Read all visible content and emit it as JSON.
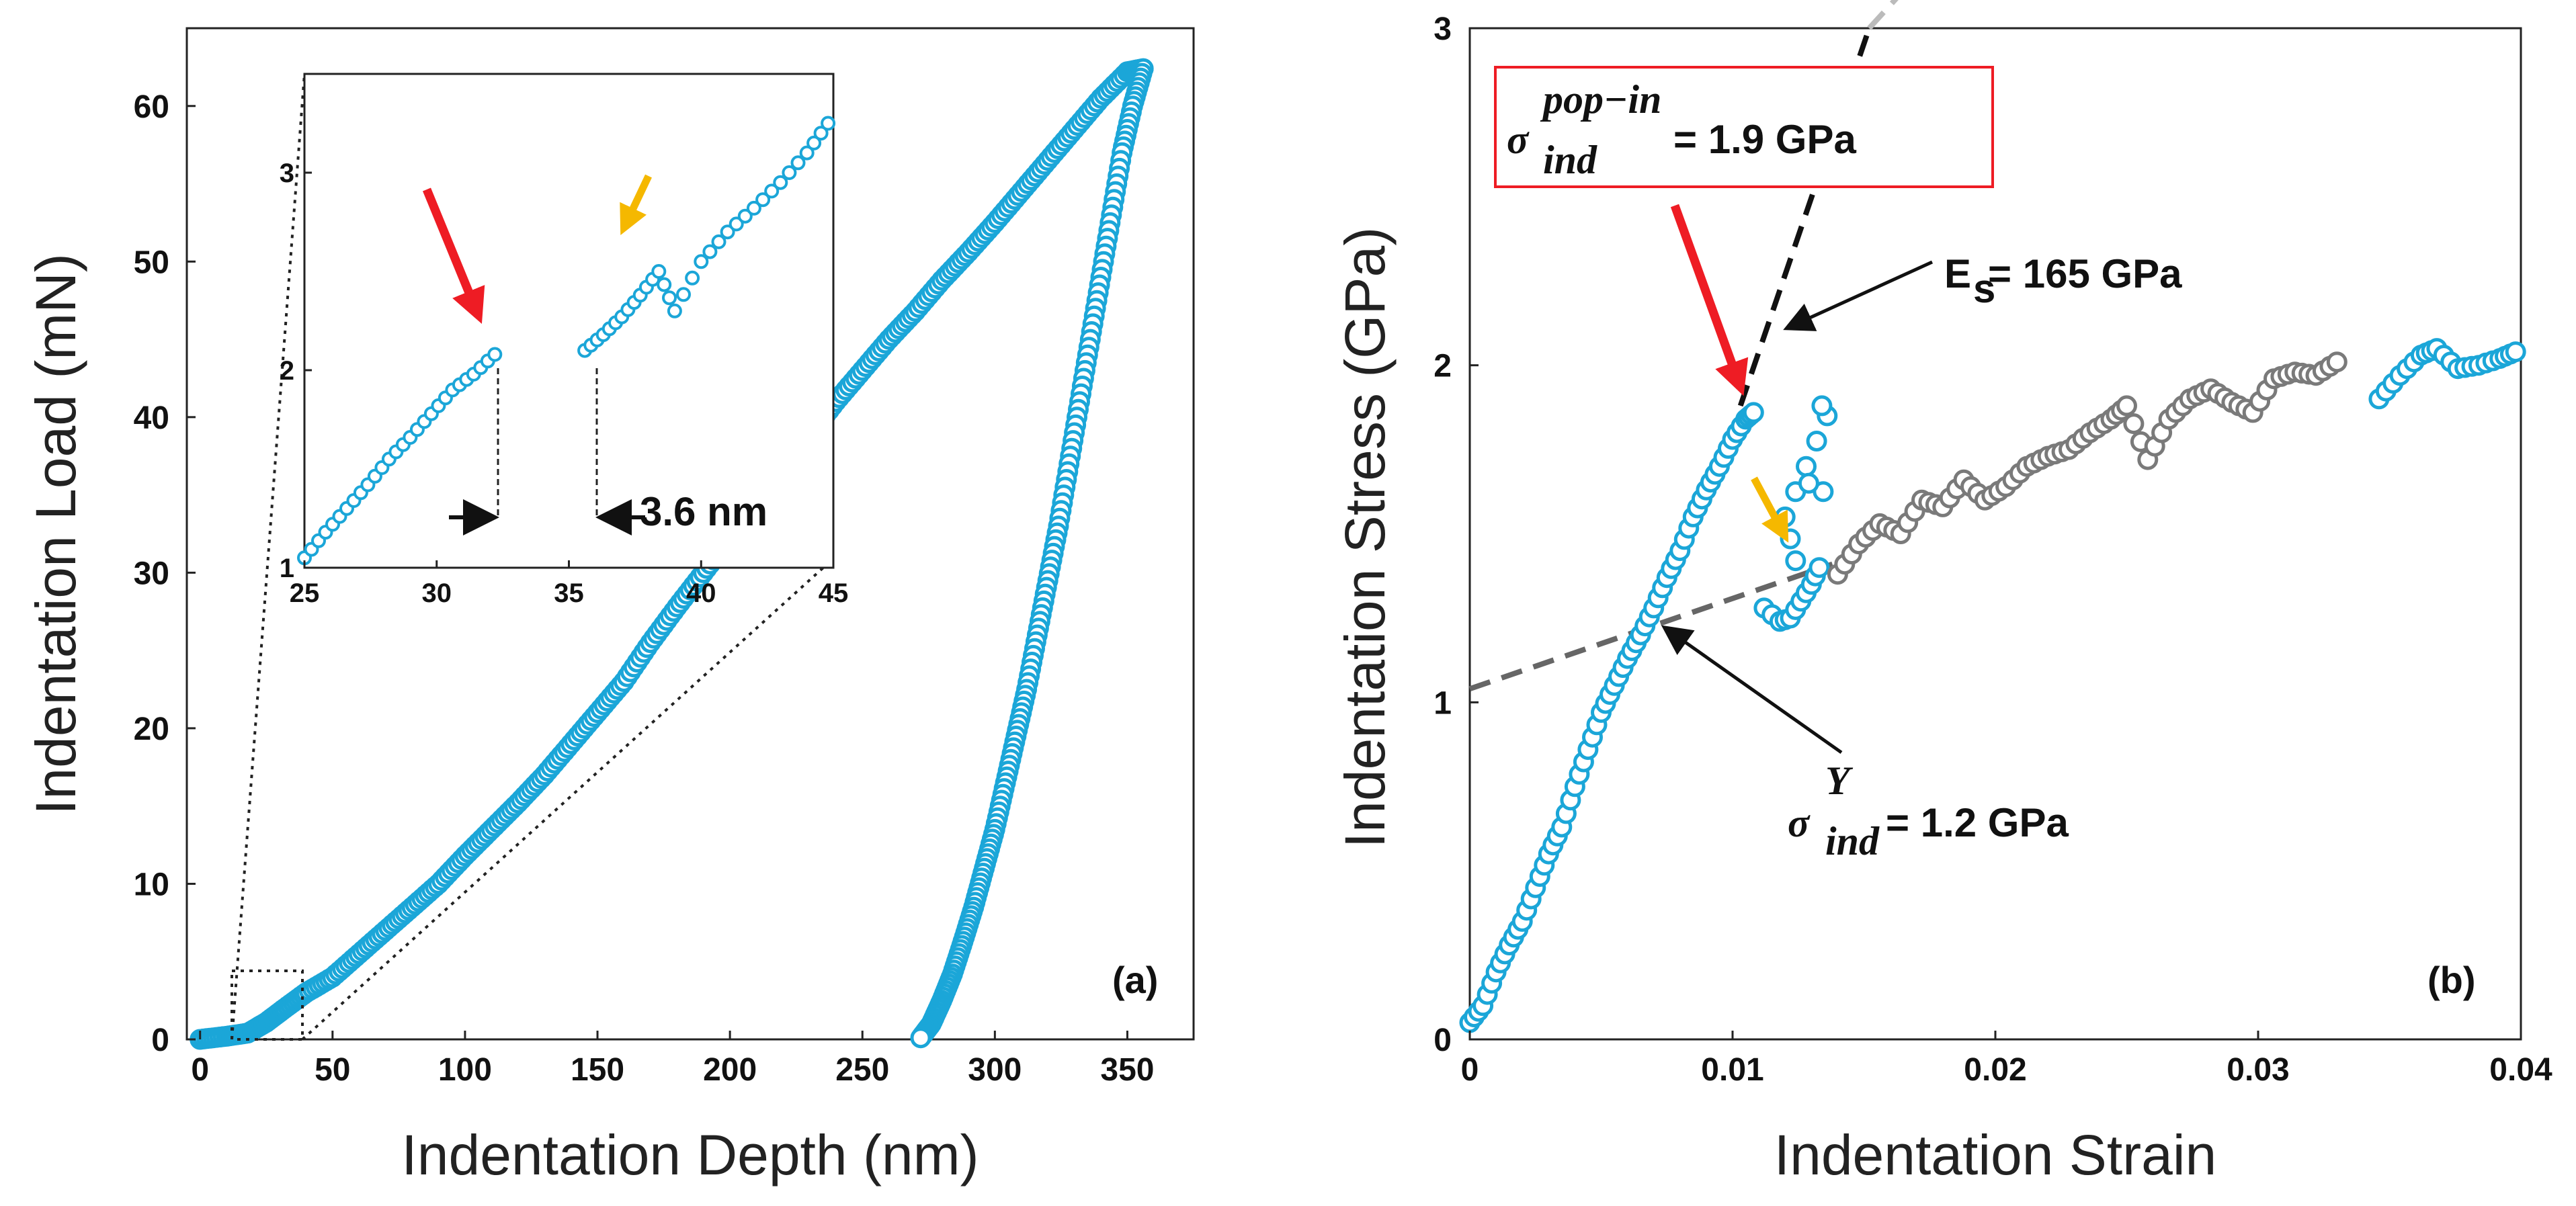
{
  "chart_data": [
    {
      "type": "scatter",
      "panel_label": "(a)",
      "xlabel": "Indentation Depth (nm)",
      "ylabel": "Indentation Load (mN)",
      "xlim": [
        -5,
        375
      ],
      "ylim": [
        0,
        65
      ],
      "xticks": [
        "0",
        "50",
        "100",
        "150",
        "200",
        "250",
        "300",
        "350"
      ],
      "yticks": [
        "0",
        "10",
        "20",
        "30",
        "40",
        "50",
        "60"
      ],
      "series": [
        {
          "name": "loading",
          "color": "#1ba6d8",
          "x": [
            0,
            10,
            18,
            25,
            32,
            40,
            50,
            60,
            70,
            80,
            90,
            100,
            110,
            120,
            130,
            140,
            150,
            160,
            170,
            180,
            190,
            200,
            210,
            220,
            230,
            240,
            250,
            260,
            270,
            280,
            290,
            300,
            310,
            320,
            330,
            340,
            350,
            356
          ],
          "y": [
            0,
            0.2,
            0.4,
            1.1,
            2.0,
            3.0,
            4.0,
            5.5,
            7.0,
            8.5,
            10.0,
            11.8,
            13.5,
            15.2,
            17.0,
            19.0,
            21.0,
            23.0,
            25.5,
            27.8,
            30.0,
            32.2,
            34.5,
            36.8,
            38.8,
            41.0,
            43.0,
            45.0,
            46.8,
            48.8,
            50.6,
            52.5,
            54.5,
            56.5,
            58.5,
            60.5,
            62.2,
            62.4
          ]
        },
        {
          "name": "unloading",
          "color": "#1ba6d8",
          "x": [
            356,
            352,
            348,
            344,
            340,
            336,
            332,
            328,
            324,
            320,
            316,
            312,
            308,
            304,
            300,
            296,
            292,
            288,
            284,
            280,
            276,
            272
          ],
          "y": [
            62.4,
            60.0,
            57.0,
            53.0,
            49.0,
            45.0,
            41.0,
            37.0,
            33.0,
            29.5,
            26.0,
            22.5,
            19.5,
            16.5,
            13.5,
            11.0,
            8.5,
            6.3,
            4.2,
            2.5,
            1.0,
            0.1
          ]
        }
      ],
      "inset": {
        "xlim": [
          25,
          45
        ],
        "ylim": [
          1,
          3.5
        ],
        "xticks": [
          "25",
          "30",
          "35",
          "40",
          "45"
        ],
        "yticks": [
          "1",
          "2",
          "3"
        ],
        "annotation": "3.6 nm",
        "series": [
          {
            "name": "inset-before-pop-in",
            "x": [
              25.0,
              25.8,
              26.6,
              27.4,
              28.2,
              29.0,
              29.8,
              30.6,
              31.4,
              32.2
            ],
            "y": [
              1.05,
              1.18,
              1.3,
              1.42,
              1.55,
              1.66,
              1.78,
              1.9,
              1.98,
              2.08
            ]
          },
          {
            "name": "inset-after-pop-in",
            "x": [
              35.6,
              36.3,
              37.0,
              37.7,
              38.4,
              39.0,
              40.0,
              41.0,
              42.0,
              43.0,
              44.0,
              44.8
            ],
            "y": [
              2.1,
              2.18,
              2.27,
              2.38,
              2.5,
              2.3,
              2.55,
              2.7,
              2.82,
              2.95,
              3.1,
              3.25
            ]
          }
        ]
      }
    },
    {
      "type": "scatter",
      "panel_label": "(b)",
      "xlabel": "Indentation Strain",
      "ylabel": "Indentation Stress (GPa)",
      "xlim": [
        0,
        0.04
      ],
      "ylim": [
        0,
        3
      ],
      "xticks": [
        "0",
        "0.01",
        "0.02",
        "0.03",
        "0.04"
      ],
      "yticks": [
        "0",
        "1",
        "2",
        "3"
      ],
      "series": [
        {
          "name": "elastic-loading",
          "color": "#1ba6d8",
          "x": [
            0.0,
            0.0005,
            0.001,
            0.0015,
            0.002,
            0.0025,
            0.003,
            0.0035,
            0.004,
            0.0045,
            0.005,
            0.0055,
            0.006,
            0.0065,
            0.007,
            0.0075,
            0.008,
            0.0085,
            0.009,
            0.0095,
            0.01,
            0.0105,
            0.0108
          ],
          "y": [
            0.05,
            0.1,
            0.2,
            0.28,
            0.35,
            0.45,
            0.55,
            0.63,
            0.75,
            0.86,
            0.97,
            1.05,
            1.13,
            1.2,
            1.28,
            1.37,
            1.45,
            1.55,
            1.63,
            1.7,
            1.78,
            1.84,
            1.86
          ]
        },
        {
          "name": "pop-in-excursion",
          "color": "#1ba6d8",
          "x": [
            0.0112,
            0.0118,
            0.0122,
            0.0126,
            0.013,
            0.0133,
            0.0136,
            0.0128,
            0.012,
            0.0124,
            0.0134
          ],
          "y": [
            1.28,
            1.24,
            1.25,
            1.3,
            1.35,
            1.4,
            1.85,
            1.7,
            1.55,
            1.42,
            1.88
          ]
        },
        {
          "name": "plastic-hardening",
          "color": "#1ba6d8",
          "x": [
            0.0346,
            0.0354,
            0.0362,
            0.0368,
            0.0376,
            0.0384,
            0.0392,
            0.0398
          ],
          "y": [
            1.9,
            1.97,
            2.03,
            2.05,
            1.99,
            2.0,
            2.02,
            2.04
          ]
        },
        {
          "name": "post-yield",
          "color": "#7a7a7a",
          "x": [
            0.014,
            0.0148,
            0.0156,
            0.0164,
            0.0172,
            0.018,
            0.0188,
            0.0196,
            0.0204,
            0.0212,
            0.022,
            0.0228,
            0.0236,
            0.0244,
            0.025,
            0.0258,
            0.0266,
            0.0274,
            0.0282,
            0.029,
            0.0298,
            0.0306,
            0.0314,
            0.0322,
            0.033
          ],
          "y": [
            1.38,
            1.47,
            1.53,
            1.5,
            1.6,
            1.58,
            1.66,
            1.6,
            1.64,
            1.7,
            1.73,
            1.75,
            1.8,
            1.84,
            1.88,
            1.72,
            1.84,
            1.9,
            1.93,
            1.89,
            1.86,
            1.96,
            1.98,
            1.97,
            2.01
          ]
        }
      ],
      "fit_lines": [
        {
          "name": "elastic-fit",
          "x": [
            0.0103,
            0.0152
          ],
          "y": [
            1.88,
            3.0
          ]
        },
        {
          "name": "hardening-fit",
          "x": [
            0.0,
            0.0138
          ],
          "y": [
            1.04,
            1.41
          ]
        }
      ],
      "annotations": {
        "pop_in_symbol": "σ",
        "pop_in_superscript": "pop−in",
        "pop_in_subscript": "ind",
        "pop_in_value": "= 1.9 GPa",
        "modulus_symbol": "E",
        "modulus_subscript": "s",
        "modulus_value": "= 165 GPa",
        "yield_symbol": "σ",
        "yield_superscript": "Y",
        "yield_subscript": "ind",
        "yield_value": "= 1.2 GPa"
      }
    }
  ],
  "colors": {
    "data_cyan": "#1ba6d8",
    "post_yield_gray": "#7a7a7a",
    "red_arrow": "#ee1c24",
    "orange_arrow": "#f5b800",
    "fit_black": "#111111",
    "fit_gray": "#666666"
  }
}
